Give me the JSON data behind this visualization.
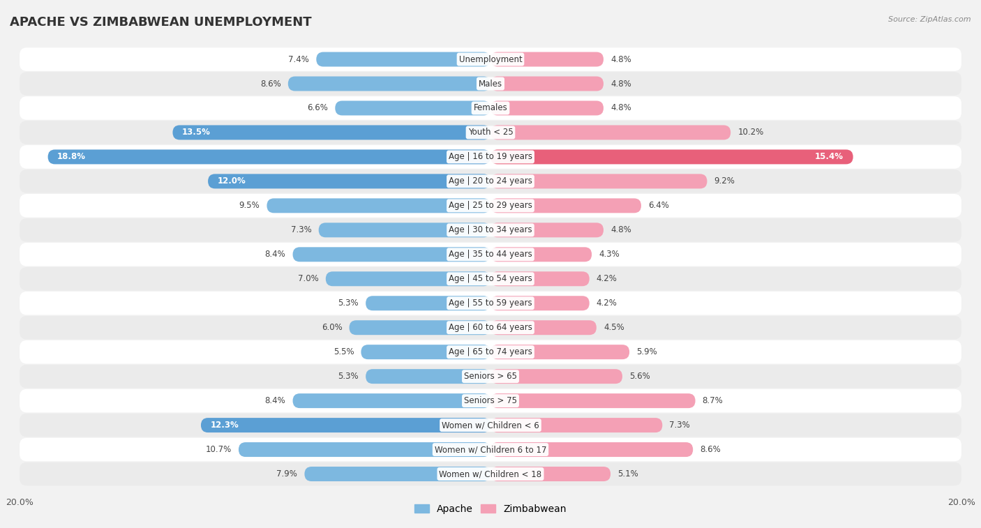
{
  "title": "APACHE VS ZIMBABWEAN UNEMPLOYMENT",
  "source": "Source: ZipAtlas.com",
  "categories": [
    "Unemployment",
    "Males",
    "Females",
    "Youth < 25",
    "Age | 16 to 19 years",
    "Age | 20 to 24 years",
    "Age | 25 to 29 years",
    "Age | 30 to 34 years",
    "Age | 35 to 44 years",
    "Age | 45 to 54 years",
    "Age | 55 to 59 years",
    "Age | 60 to 64 years",
    "Age | 65 to 74 years",
    "Seniors > 65",
    "Seniors > 75",
    "Women w/ Children < 6",
    "Women w/ Children 6 to 17",
    "Women w/ Children < 18"
  ],
  "apache_values": [
    7.4,
    8.6,
    6.6,
    13.5,
    18.8,
    12.0,
    9.5,
    7.3,
    8.4,
    7.0,
    5.3,
    6.0,
    5.5,
    5.3,
    8.4,
    12.3,
    10.7,
    7.9
  ],
  "zimbabwean_values": [
    4.8,
    4.8,
    4.8,
    10.2,
    15.4,
    9.2,
    6.4,
    4.8,
    4.3,
    4.2,
    4.2,
    4.5,
    5.9,
    5.6,
    8.7,
    7.3,
    8.6,
    5.1
  ],
  "apache_color": "#7db8e0",
  "apache_highlight_color": "#5b9fd4",
  "zimbabwean_color": "#f4a0b5",
  "zimbabwean_highlight_color": "#e8607a",
  "bar_height": 0.6,
  "xlim": 20.0,
  "background_color": "#f2f2f2",
  "row_color_light": "#ffffff",
  "row_color_dark": "#ebebeb",
  "title_fontsize": 13,
  "label_fontsize": 8.5,
  "tick_fontsize": 9,
  "legend_fontsize": 10,
  "apache_thresh": 11.0,
  "zimbabwean_thresh": 13.0
}
